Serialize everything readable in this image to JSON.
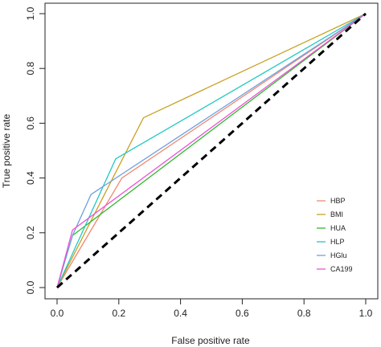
{
  "chart_data": {
    "type": "line",
    "xlabel": "False positive rate",
    "ylabel": "True positive rate",
    "xlim": [
      0,
      1
    ],
    "ylim": [
      0,
      1
    ],
    "x_ticks": [
      "0.0",
      "0.2",
      "0.4",
      "0.6",
      "0.8",
      "1.0"
    ],
    "y_ticks": [
      "0.0",
      "0.2",
      "0.4",
      "0.6",
      "0.8",
      "1.0"
    ],
    "grid": false,
    "legend_position": "bottom-right",
    "diagonal": {
      "style": "dashed",
      "color": "#000000",
      "points": [
        [
          0,
          0
        ],
        [
          1,
          1
        ]
      ]
    },
    "series": [
      {
        "name": "HBP",
        "color": "#f08870",
        "points": [
          [
            0,
            0
          ],
          [
            0.21,
            0.4
          ],
          [
            1,
            1
          ]
        ]
      },
      {
        "name": "BMI",
        "color": "#c8a020",
        "points": [
          [
            0,
            0
          ],
          [
            0.28,
            0.62
          ],
          [
            1,
            1
          ]
        ]
      },
      {
        "name": "HUA",
        "color": "#30b830",
        "points": [
          [
            0,
            0
          ],
          [
            0.05,
            0.19
          ],
          [
            1,
            1
          ]
        ]
      },
      {
        "name": "HLP",
        "color": "#20c8c0",
        "points": [
          [
            0,
            0
          ],
          [
            0.19,
            0.47
          ],
          [
            1,
            1
          ]
        ]
      },
      {
        "name": "HGlu",
        "color": "#6ea0e0",
        "points": [
          [
            0,
            0
          ],
          [
            0.05,
            0.19
          ],
          [
            0.11,
            0.34
          ],
          [
            1,
            1
          ]
        ]
      },
      {
        "name": "CA199",
        "color": "#ee50d8",
        "points": [
          [
            0,
            0
          ],
          [
            0.05,
            0.21
          ],
          [
            1,
            1
          ]
        ]
      }
    ]
  }
}
